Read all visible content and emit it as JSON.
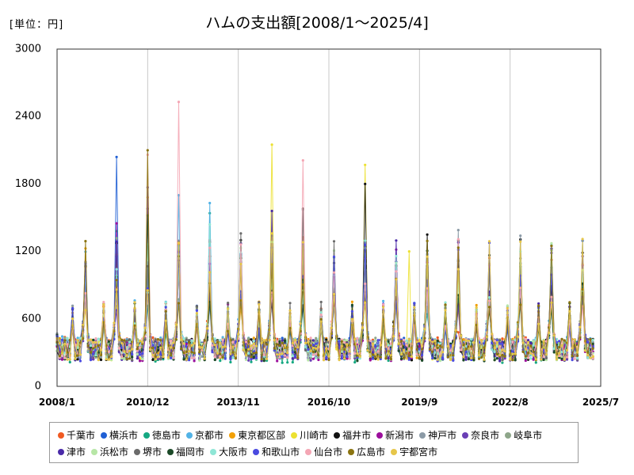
{
  "unit_label": "[単位：円]",
  "chart_data": {
    "type": "line",
    "title": "ハムの支出額[2008/1～2025/4]",
    "xlabel": "",
    "ylabel": "",
    "ylim": [
      0,
      3000
    ],
    "yticks": [
      0,
      600,
      1200,
      1800,
      2400,
      3000
    ],
    "x_start": "2008-01",
    "x_end": "2025-07",
    "xticks": [
      "2008/1",
      "2010/12",
      "2013/11",
      "2016/10",
      "2019/9",
      "2022/8",
      "2025/7"
    ],
    "grid": "vertical",
    "legend_position": "bottom",
    "series": [
      {
        "name": "千葉市",
        "color": "#f05a22",
        "base": 430,
        "peaks": [
          [
            "2008-12",
            1060
          ],
          [
            "2020-12",
            480
          ]
        ]
      },
      {
        "name": "横浜市",
        "color": "#1f5fd4",
        "base": 420,
        "peaks": [
          [
            "2009-12",
            2040
          ],
          [
            "2011-12",
            1210
          ]
        ]
      },
      {
        "name": "徳島市",
        "color": "#15a882",
        "base": 380,
        "peaks": [
          [
            "2009-12",
            1380
          ],
          [
            "2012-12",
            1540
          ]
        ]
      },
      {
        "name": "京都市",
        "color": "#52b3e6",
        "base": 440,
        "peaks": [
          [
            "2011-12",
            1700
          ],
          [
            "2012-12",
            1630
          ],
          [
            "2014-12",
            1340
          ]
        ]
      },
      {
        "name": "東京都区部",
        "color": "#f2a007",
        "base": 420,
        "peaks": [
          [
            "2010-12",
            1680
          ],
          [
            "2016-12",
            980
          ]
        ]
      },
      {
        "name": "川崎市",
        "color": "#ece131",
        "base": 410,
        "peaks": [
          [
            "2014-12",
            2150
          ],
          [
            "2017-12",
            1970
          ],
          [
            "2019-05",
            1200
          ]
        ]
      },
      {
        "name": "福井市",
        "color": "#111111",
        "base": 410,
        "peaks": [
          [
            "2010-12",
            1580
          ],
          [
            "2017-12",
            1800
          ],
          [
            "2019-12",
            1350
          ]
        ]
      },
      {
        "name": "新潟市",
        "color": "#9c0e9c",
        "base": 400,
        "peaks": [
          [
            "2009-12",
            1450
          ],
          [
            "2023-12",
            1250
          ]
        ]
      },
      {
        "name": "神戸市",
        "color": "#8b9aa6",
        "base": 420,
        "peaks": [
          [
            "2015-12",
            1570
          ],
          [
            "2020-12",
            1390
          ],
          [
            "2022-12",
            1340
          ]
        ]
      },
      {
        "name": "奈良市",
        "color": "#6a3fb5",
        "base": 400,
        "peaks": [
          [
            "2010-12",
            1770
          ],
          [
            "2013-12",
            1100
          ]
        ]
      },
      {
        "name": "岐阜市",
        "color": "#8ea68a",
        "base": 420,
        "peaks": [
          [
            "2010-12",
            1080
          ],
          [
            "2016-12",
            1030
          ]
        ]
      },
      {
        "name": "津市",
        "color": "#4a2aa8",
        "base": 400,
        "peaks": [
          [
            "2011-12",
            1120
          ],
          [
            "2014-12",
            1560
          ]
        ]
      },
      {
        "name": "浜松市",
        "color": "#b7e6a6",
        "base": 400,
        "peaks": [
          [
            "2009-12",
            980
          ],
          [
            "2021-12",
            740
          ]
        ]
      },
      {
        "name": "堺市",
        "color": "#6b6b6b",
        "base": 410,
        "peaks": [
          [
            "2013-12",
            1360
          ],
          [
            "2015-12",
            1580
          ],
          [
            "2016-12",
            1290
          ]
        ]
      },
      {
        "name": "福岡市",
        "color": "#1c4a28",
        "base": 400,
        "peaks": [
          [
            "2010-12",
            1520
          ],
          [
            "2013-12",
            1140
          ]
        ]
      },
      {
        "name": "大阪市",
        "color": "#8fe6d6",
        "base": 420,
        "peaks": [
          [
            "2012-12",
            1440
          ],
          [
            "2024-12",
            850
          ]
        ]
      },
      {
        "name": "和歌山市",
        "color": "#4a4ae0",
        "base": 400,
        "peaks": [
          [
            "2011-12",
            1190
          ],
          [
            "2012-12",
            1090
          ]
        ]
      },
      {
        "name": "仙台市",
        "color": "#f4a6b4",
        "base": 420,
        "peaks": [
          [
            "2011-12",
            2530
          ],
          [
            "2010-12",
            2060
          ],
          [
            "2015-12",
            2010
          ]
        ]
      },
      {
        "name": "広島市",
        "color": "#8b7410",
        "base": 410,
        "peaks": [
          [
            "2010-12",
            2100
          ],
          [
            "2023-12",
            1250
          ]
        ]
      },
      {
        "name": "宇都宮市",
        "color": "#e6c64a",
        "base": 410,
        "peaks": [
          [
            "2014-12",
            1360
          ],
          [
            "2021-12",
            1290
          ]
        ]
      }
    ]
  }
}
